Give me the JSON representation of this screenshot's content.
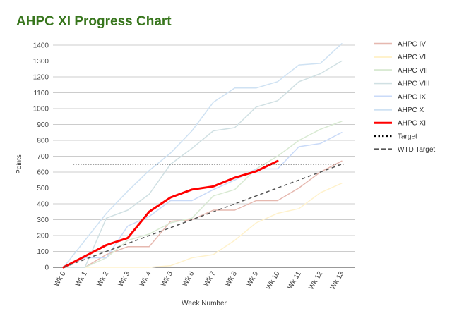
{
  "chart_data": {
    "type": "line",
    "title": "AHPC XI Progress Chart",
    "xlabel": "Week Number",
    "ylabel": "Points",
    "ylim": [
      0,
      1400
    ],
    "yticks": [
      0,
      100,
      200,
      300,
      400,
      500,
      600,
      700,
      800,
      900,
      1000,
      1100,
      1200,
      1300,
      1400
    ],
    "grid": true,
    "legend_position": "right",
    "categories": [
      "Wk 0",
      "Wk 1",
      "Wk 2",
      "Wk 3",
      "Wk 4",
      "Wk 5",
      "Wk 6",
      "Wk 7",
      "Wk 8",
      "Wk 9",
      "Wk 10",
      "Wk 11",
      "Wk 12",
      "Wk 13"
    ],
    "series": [
      {
        "name": "AHPC IV",
        "color": "#e6b8af",
        "width": 1.5,
        "dash": "",
        "values": [
          0,
          0,
          80,
          130,
          130,
          290,
          300,
          360,
          360,
          420,
          420,
          500,
          600,
          670
        ]
      },
      {
        "name": "AHPC VI",
        "color": "#fff2cc",
        "width": 1.5,
        "dash": "",
        "values": [
          0,
          0,
          0,
          0,
          0,
          10,
          60,
          80,
          170,
          280,
          340,
          370,
          470,
          530
        ]
      },
      {
        "name": "AHPC VII",
        "color": "#d9ead3",
        "width": 1.5,
        "dash": "",
        "values": [
          0,
          0,
          60,
          170,
          210,
          280,
          310,
          450,
          490,
          620,
          700,
          800,
          870,
          920
        ]
      },
      {
        "name": "AHPC VIII",
        "color": "#d0e0e3",
        "width": 1.5,
        "dash": "",
        "values": [
          0,
          0,
          310,
          360,
          460,
          650,
          750,
          860,
          880,
          1010,
          1050,
          1170,
          1220,
          1300
        ]
      },
      {
        "name": "AHPC IX",
        "color": "#c9daf8",
        "width": 1.5,
        "dash": "",
        "values": [
          0,
          60,
          60,
          260,
          320,
          420,
          420,
          490,
          550,
          620,
          620,
          760,
          780,
          850
        ]
      },
      {
        "name": "AHPC X",
        "color": "#cfe2f3",
        "width": 1.5,
        "dash": "",
        "values": [
          0,
          170,
          340,
          480,
          610,
          720,
          860,
          1040,
          1130,
          1130,
          1170,
          1275,
          1285,
          1410
        ]
      },
      {
        "name": "AHPC XI",
        "color": "#ff0000",
        "width": 3,
        "dash": "",
        "values": [
          0,
          70,
          140,
          185,
          350,
          440,
          490,
          510,
          565,
          605,
          670,
          null,
          null,
          null
        ]
      },
      {
        "name": "Target",
        "color": "#000000",
        "width": 1.2,
        "dash": "1.5,2",
        "values": [
          null,
          null,
          null,
          null,
          null,
          null,
          null,
          null,
          null,
          null,
          null,
          null,
          null,
          null
        ],
        "constant": 650,
        "from_x": 0.45,
        "to_x": 13.1
      },
      {
        "name": "WTD Target",
        "color": "#555555",
        "width": 1.5,
        "dash": "5,4",
        "values": [
          0,
          50,
          100,
          150,
          200,
          250,
          300,
          350,
          400,
          450,
          500,
          550,
          600,
          650
        ]
      }
    ]
  }
}
